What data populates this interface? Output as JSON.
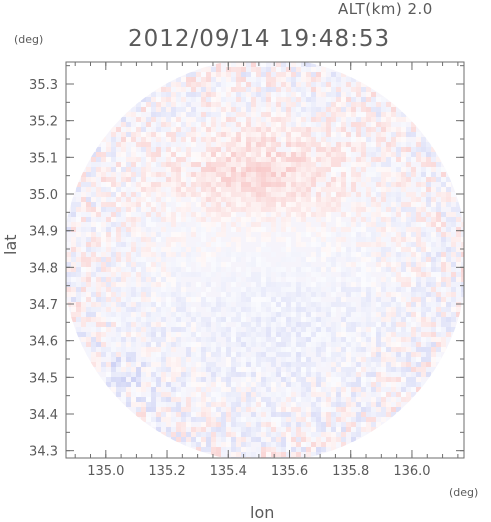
{
  "header": {
    "altitude": "ALT(km) 2.0",
    "datetime": "2012/09/14 19:48:53",
    "y_unit": "(deg)",
    "x_unit": "(deg)"
  },
  "chart_data": {
    "type": "heatmap",
    "title": "2012/09/14 19:48:53",
    "xlabel": "lon",
    "ylabel": "lat",
    "xlim": [
      134.87,
      136.17
    ],
    "ylim": [
      34.28,
      35.36
    ],
    "xticks": [
      135.0,
      135.2,
      135.4,
      135.6,
      135.8,
      136.0
    ],
    "xtick_labels": [
      "135.0",
      "135.2",
      "135.4",
      "135.6",
      "135.8",
      "136.0"
    ],
    "yticks": [
      34.3,
      34.4,
      34.5,
      34.6,
      34.7,
      34.8,
      34.9,
      35.0,
      35.1,
      35.2,
      35.3
    ],
    "ytick_labels": [
      "34.3",
      "34.4",
      "34.5",
      "34.6",
      "34.7",
      "34.8",
      "34.9",
      "35.0",
      "35.1",
      "35.2",
      "35.3"
    ],
    "center": [
      135.52,
      34.82
    ],
    "radius_deg": 0.66,
    "colors": {
      "positive": "#f6b9b9",
      "negative": "#c3c8f2",
      "background": "#ffffff",
      "frame": "#6e6e6e"
    },
    "regions": [
      {
        "kind": "positive",
        "center": [
          135.5,
          35.05
        ],
        "extent": [
          0.28,
          0.12
        ],
        "strength": 0.8
      },
      {
        "kind": "negative",
        "center": [
          135.55,
          34.62
        ],
        "extent": [
          0.35,
          0.2
        ],
        "strength": 0.45
      },
      {
        "kind": "negative",
        "center": [
          135.05,
          34.5
        ],
        "extent": [
          0.15,
          0.1
        ],
        "strength": 0.4
      }
    ]
  }
}
